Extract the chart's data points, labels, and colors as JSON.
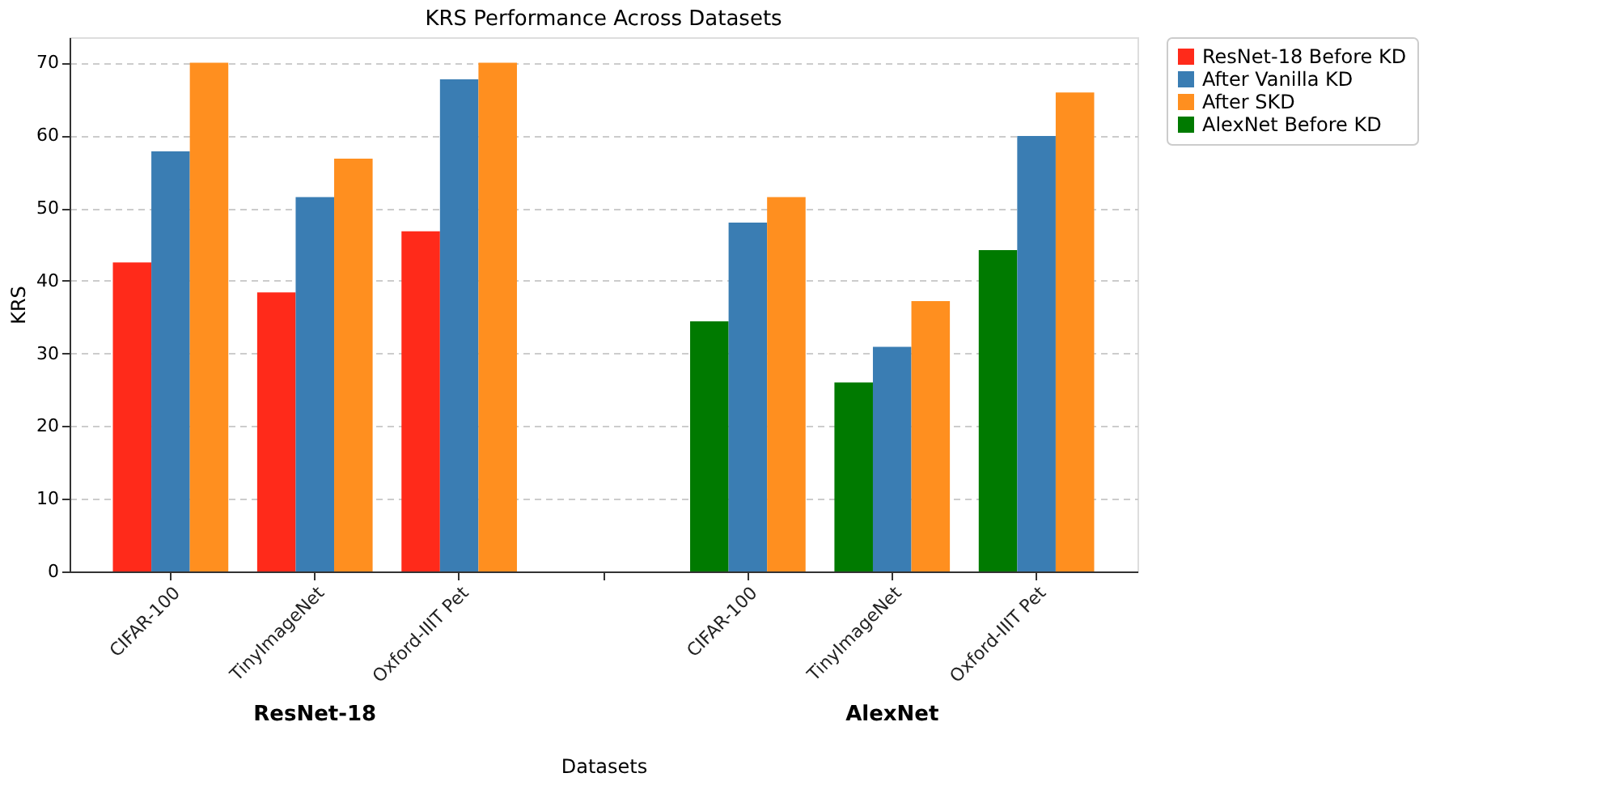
{
  "chart_data": {
    "type": "bar",
    "title": "KRS Performance Across Datasets",
    "xlabel": "Datasets",
    "ylabel": "KRS",
    "categories": [
      "CIFAR-100",
      "TinyImageNet",
      "Oxford-IIIT Pet",
      null,
      "CIFAR-100",
      "TinyImageNet",
      "Oxford-IIIT Pet"
    ],
    "series": [
      {
        "name": "ResNet-18 Before KD",
        "color": "#ff2a1a",
        "values": [
          42.5,
          38.4,
          46.8,
          null,
          null,
          null,
          null
        ]
      },
      {
        "name": "After Vanilla KD",
        "color": "#3a7db3",
        "values": [
          57.8,
          51.5,
          67.7,
          null,
          48,
          30.9,
          59.9
        ]
      },
      {
        "name": "After SKD",
        "color": "#ff8f1f",
        "values": [
          70,
          56.8,
          70,
          null,
          51.5,
          37.2,
          65.9
        ]
      },
      {
        "name": "AlexNet Before KD",
        "color": "#007a00",
        "values": [
          null,
          null,
          null,
          null,
          34.4,
          26,
          44.2
        ]
      }
    ],
    "annotations": [
      "ResNet-18",
      "AlexNet"
    ],
    "ylim": [
      0,
      73.5
    ],
    "yticks": [
      0,
      10,
      20,
      30,
      40,
      50,
      60,
      70
    ],
    "grid": "y",
    "legend": "top right"
  }
}
